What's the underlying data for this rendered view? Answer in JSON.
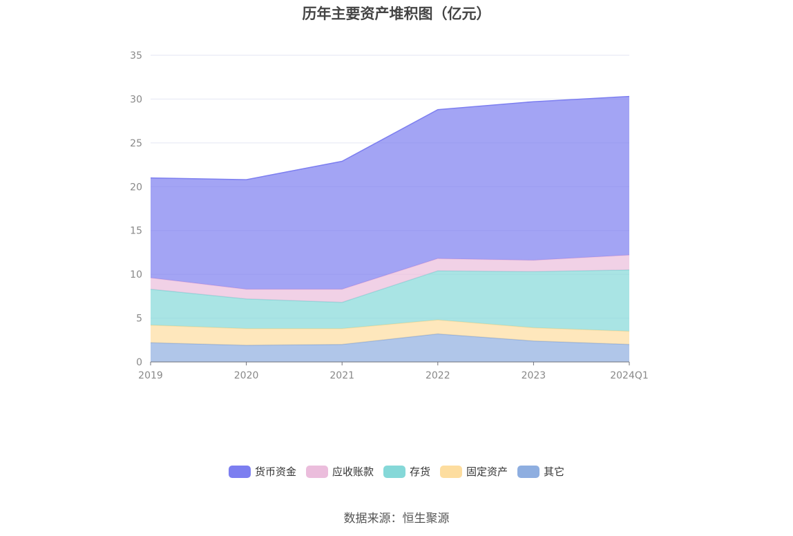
{
  "chart_data": {
    "type": "area",
    "stacked": true,
    "title": "历年主要资产堆积图（亿元）",
    "categories": [
      "2019",
      "2020",
      "2021",
      "2022",
      "2023",
      "2024Q1"
    ],
    "ylim": [
      0,
      35
    ],
    "yticks": [
      "0",
      "5",
      "10",
      "15",
      "20",
      "25",
      "30",
      "35"
    ],
    "grid": true,
    "legend_position": "bottom",
    "series": [
      {
        "name": "其它",
        "color": "#8eaee0",
        "values": [
          2.2,
          1.9,
          2.0,
          3.2,
          2.4,
          2.0
        ]
      },
      {
        "name": "固定资产",
        "color": "#fddd9f",
        "values": [
          2.0,
          1.9,
          1.8,
          1.6,
          1.5,
          1.5
        ]
      },
      {
        "name": "存货",
        "color": "#85d8d8",
        "values": [
          4.1,
          3.4,
          3.0,
          5.6,
          6.4,
          7.0
        ]
      },
      {
        "name": "应收账款",
        "color": "#ebbddc",
        "values": [
          1.3,
          1.1,
          1.5,
          1.4,
          1.3,
          1.7
        ]
      },
      {
        "name": "货币资金",
        "color": "#7c7ef0",
        "values": [
          11.4,
          12.5,
          14.6,
          17.0,
          18.1,
          18.1
        ]
      }
    ]
  },
  "legend_order": [
    "货币资金",
    "应收账款",
    "存货",
    "固定资产",
    "其它"
  ],
  "source_text": "数据来源：恒生聚源"
}
